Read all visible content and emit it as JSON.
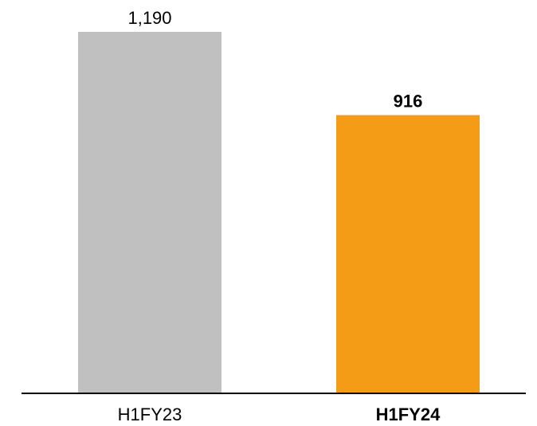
{
  "chart_data": {
    "type": "bar",
    "categories": [
      "H1FY23",
      "H1FY24"
    ],
    "values": [
      1190,
      916
    ],
    "value_labels": [
      "1,190",
      "916"
    ],
    "highlighted_category": "H1FY24",
    "colors": [
      "#c0c0c0",
      "#f59c16"
    ],
    "axis_color": "#000000",
    "ylim": [
      0,
      1190
    ],
    "grid": false,
    "legend": "none"
  }
}
